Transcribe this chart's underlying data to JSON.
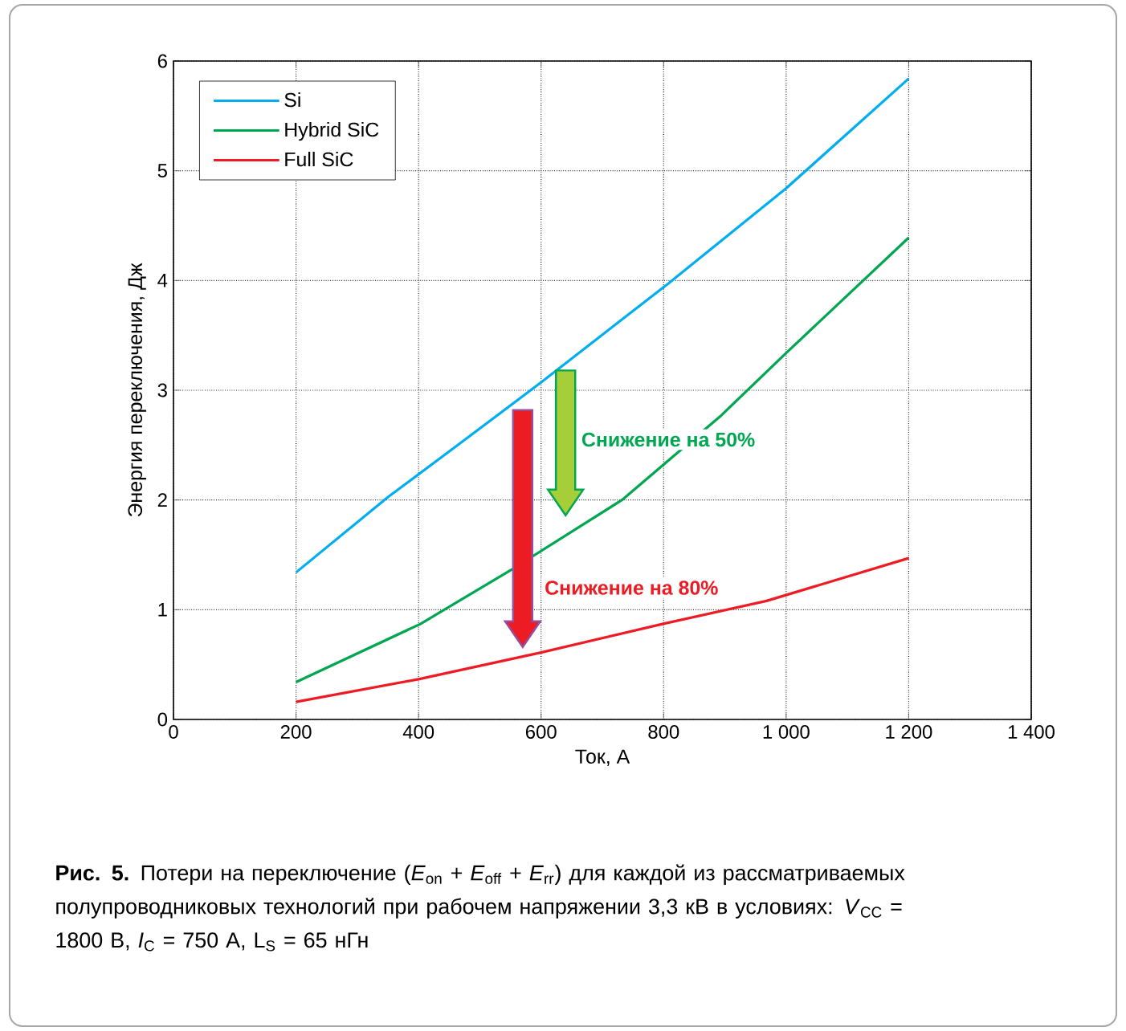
{
  "chart_data": {
    "type": "line",
    "xlabel": "Ток, А",
    "ylabel": "Энергия переключения, Дж",
    "xlim": [
      0,
      1400
    ],
    "xticks": [
      0,
      200,
      400,
      600,
      800,
      {
        "value": 1000,
        "label": "1 000"
      },
      {
        "value": 1200,
        "label": "1 200"
      },
      {
        "value": 1400,
        "label": "1 400"
      }
    ],
    "ylim": [
      0,
      6
    ],
    "yticks": [
      0,
      1,
      2,
      3,
      4,
      5,
      6
    ],
    "grid": true,
    "legend": "top left",
    "line_style": "solid",
    "series": [
      {
        "name": "Si",
        "color": "#00aeef",
        "x": [
          200,
          351,
          464,
          602,
          807,
          1000,
          1200
        ],
        "values": [
          1.34,
          2.03,
          2.5,
          3.08,
          3.97,
          4.84,
          5.84
        ]
      },
      {
        "name": "Hybrid SiC",
        "color": "#00a650",
        "x": [
          200,
          403,
          553,
          732,
          892,
          1000,
          1200
        ],
        "values": [
          0.34,
          0.87,
          1.37,
          2.0,
          2.76,
          3.34,
          4.39
        ]
      },
      {
        "name": "Full SiC",
        "color": "#ed1c24",
        "x": [
          200,
          403,
          600,
          798,
          968,
          1200
        ],
        "values": [
          0.16,
          0.37,
          0.61,
          0.87,
          1.08,
          1.47
        ]
      }
    ],
    "annotations": [
      "Снижение на 50%",
      "Снижение на 80%",
      "**Рис. 5.** Потери на переключение (*E*$_{on}$ + *E*$_{off}$ + *E*$_{rr}$) для каждой из рассматриваемых полупроводниковых технологий при рабочем напряжении 3,3 кВ в условиях: *V*$_{CC}$ = 1800 В, *I*$_{C}$ = 750 А, L$_{S}$ = 65 нГн"
    ]
  }
}
